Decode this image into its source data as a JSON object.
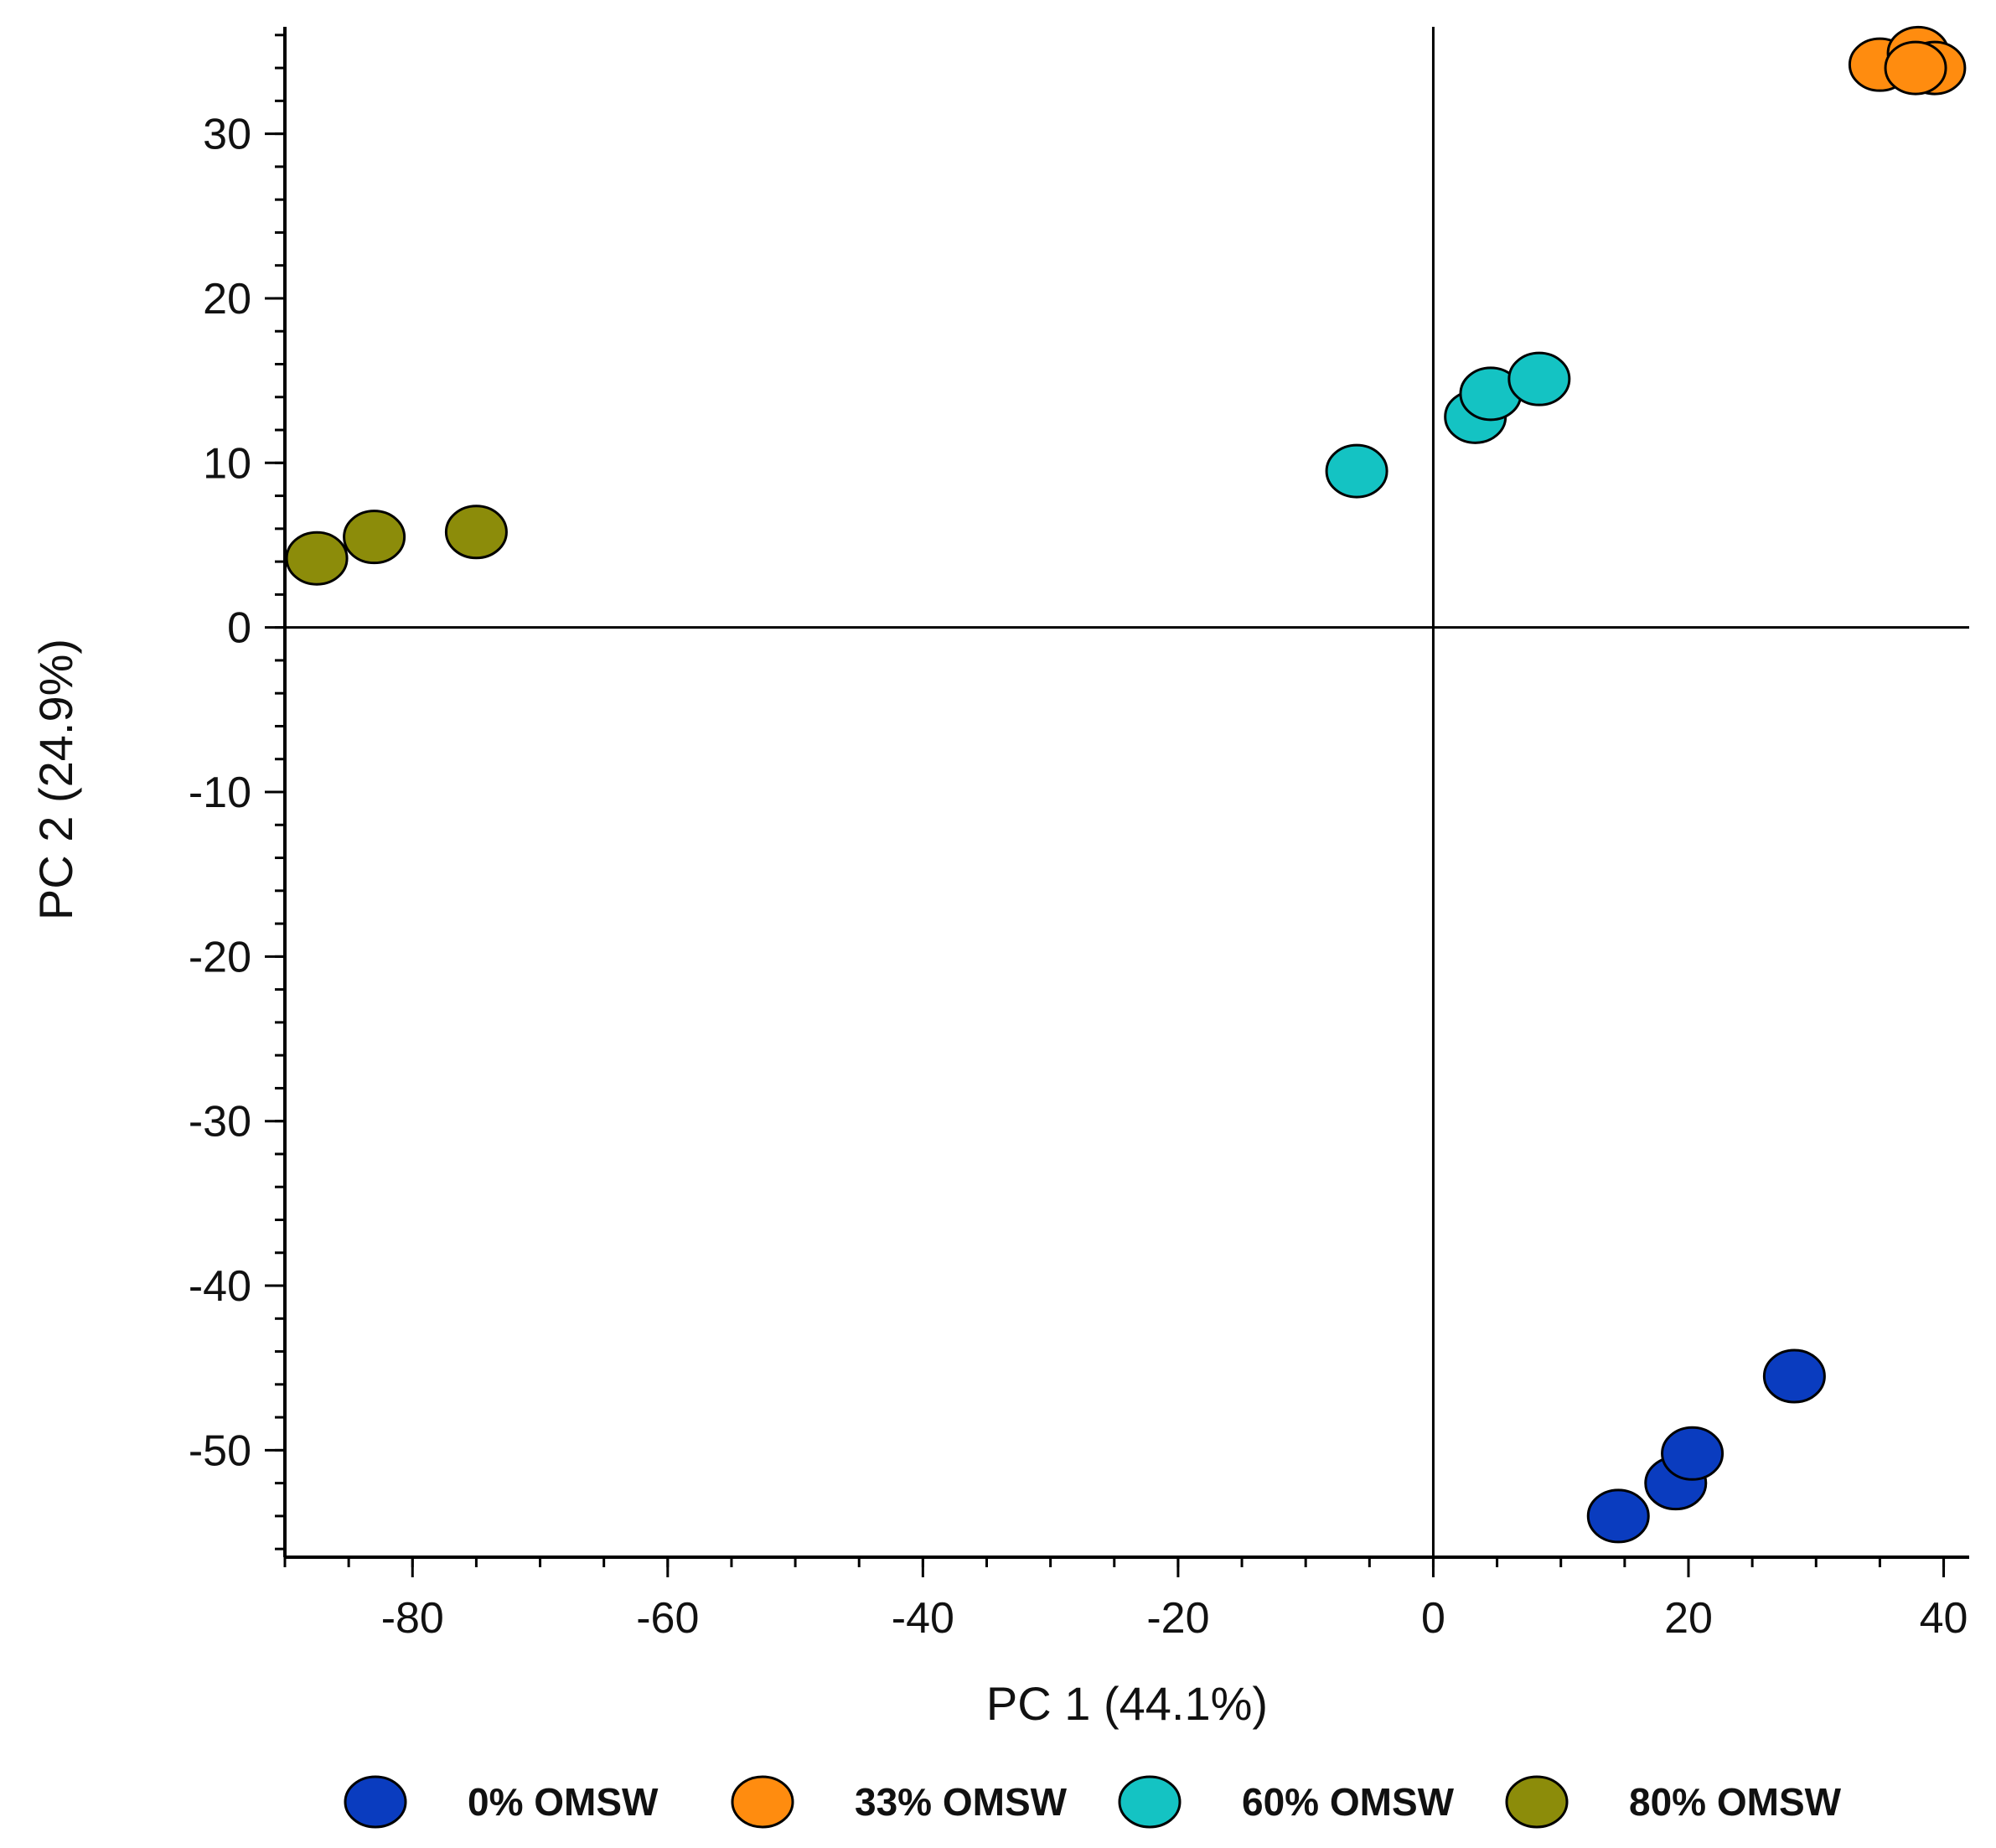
{
  "chart_data": {
    "type": "scatter",
    "title": "",
    "xlabel": "PC 1 (44.1%)",
    "ylabel": "PC 2 (24.9%)",
    "xlim": [
      -90,
      42
    ],
    "ylim": [
      -56.5,
      36.5
    ],
    "xticks": [
      -80,
      -60,
      -40,
      -20,
      0,
      20,
      40
    ],
    "yticks": [
      30,
      20,
      10,
      0,
      -10,
      -20,
      -30,
      -40,
      -50
    ],
    "x_minor_step": 5,
    "y_minor_step": 2,
    "zero_lines": true,
    "legend_position": "bottom",
    "series": [
      {
        "name": "0% OMSW",
        "color": "#0a3cbf",
        "points": [
          [
            14.5,
            -54.0
          ],
          [
            19.0,
            -52.0
          ],
          [
            20.3,
            -50.2
          ],
          [
            28.3,
            -45.5
          ]
        ]
      },
      {
        "name": "33% OMSW",
        "color": "#ff8c0f",
        "points": [
          [
            35.0,
            34.2
          ],
          [
            38.0,
            34.9
          ],
          [
            39.3,
            34.0
          ],
          [
            37.8,
            34.0
          ]
        ]
      },
      {
        "name": "60% OMSW",
        "color": "#14c3c3",
        "points": [
          [
            -6.0,
            9.5
          ],
          [
            3.3,
            12.8
          ],
          [
            4.5,
            14.2
          ],
          [
            8.3,
            15.1
          ]
        ]
      },
      {
        "name": "80% OMSW",
        "color": "#8c8c0a",
        "points": [
          [
            -87.5,
            4.2
          ],
          [
            -83.0,
            5.5
          ],
          [
            -75.0,
            5.8
          ]
        ]
      }
    ]
  }
}
